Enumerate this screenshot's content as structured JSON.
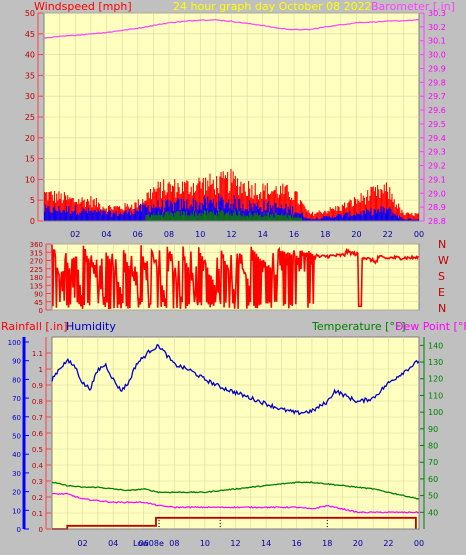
{
  "header": {
    "left_label": "Windspeed [mph]",
    "center_label": "24 hour graph day   October 08 2022",
    "right_label": "Barometer [.in]"
  },
  "x_ticks": [
    "02",
    "04",
    "06",
    "08",
    "10",
    "12",
    "14",
    "16",
    "18",
    "20",
    "22",
    "00"
  ],
  "compass_letters": [
    "N",
    "W",
    "S",
    "E",
    "N"
  ],
  "bottom_legend": {
    "rainfall": "Rainfall [.in]",
    "humidity": "Humidity",
    "temperature": "Temperature [°F]",
    "dew_point": "Dew Point [°F]"
  },
  "low_marker_label": "Low08e",
  "colors": {
    "plot_bg": "#ffffc0",
    "windspeed": "#ff0000",
    "avg_wind": "#0000ff",
    "wind_extra": "#008000",
    "barometer": "#ff40ff",
    "humidity": "#0000c8",
    "temperature": "#008000",
    "dew_point": "#ff00ff",
    "rainfall": "#c00000",
    "header_text": "#ffff00"
  },
  "chart_data": [
    {
      "type": "line",
      "title": "24 hour graph day   October 08 2022",
      "x_unit": "hour of day",
      "x_ticks": [
        "02",
        "04",
        "06",
        "08",
        "10",
        "12",
        "14",
        "16",
        "18",
        "20",
        "22",
        "00"
      ],
      "y_left": {
        "label": "Windspeed [mph]",
        "ylim": [
          0,
          50
        ],
        "ticks": [
          0,
          5,
          10,
          15,
          20,
          25,
          30,
          35,
          40,
          45,
          50
        ]
      },
      "y_right": {
        "label": "Barometer [.in]",
        "ylim": [
          28.8,
          30.3
        ],
        "ticks": [
          28.8,
          28.9,
          29.0,
          29.1,
          29.2,
          29.3,
          29.4,
          29.5,
          29.6,
          29.7,
          29.8,
          29.9,
          30.0,
          30.1,
          30.2,
          30.3
        ]
      },
      "grid": true,
      "series": [
        {
          "name": "Barometer [.in]",
          "axis": "right",
          "x": [
            0,
            2,
            4,
            6,
            8,
            10,
            11,
            12,
            14,
            15,
            16,
            17,
            18,
            20,
            22,
            24
          ],
          "y": [
            30.12,
            30.14,
            30.16,
            30.19,
            30.23,
            30.25,
            30.25,
            30.24,
            30.21,
            30.19,
            30.18,
            30.18,
            30.2,
            30.23,
            30.24,
            30.25
          ]
        },
        {
          "name": "Windspeed [mph]",
          "axis": "left",
          "x": [
            0,
            1,
            2,
            3,
            4,
            5,
            6,
            7,
            8,
            9,
            10,
            11,
            12,
            13,
            14,
            15,
            16,
            17,
            18,
            19,
            20,
            21,
            22,
            23,
            24
          ],
          "y": [
            8,
            7,
            6,
            6,
            4,
            4,
            5,
            9,
            10,
            10,
            11,
            11,
            12,
            10,
            9,
            9,
            8,
            2,
            3,
            4,
            6,
            8,
            9,
            2,
            2
          ]
        },
        {
          "name": "Average windspeed",
          "axis": "left",
          "x": [
            0,
            1,
            2,
            3,
            4,
            5,
            6,
            7,
            8,
            9,
            10,
            11,
            12,
            13,
            14,
            15,
            16,
            17,
            18,
            19,
            20,
            21,
            22,
            23,
            24
          ],
          "y": [
            3,
            3,
            3,
            2.5,
            2,
            2,
            3,
            4,
            4,
            4.5,
            4.5,
            5,
            5,
            4,
            4,
            3.5,
            3,
            0.5,
            1,
            1.5,
            2,
            2.5,
            3,
            0.5,
            0.5
          ]
        }
      ]
    },
    {
      "type": "line",
      "x_unit": "hour of day",
      "y_left": {
        "ylim": [
          0,
          360
        ],
        "ticks": [
          0,
          45,
          90,
          135,
          180,
          225,
          270,
          315,
          360
        ]
      },
      "compass": [
        "N",
        "W",
        "S",
        "E",
        "N"
      ],
      "series": [
        {
          "name": "Wind direction",
          "axis": "left",
          "x": [
            0,
            0.8,
            0.8,
            1.5,
            1.5,
            2.0,
            2.0,
            3.5,
            3.5,
            4.6,
            4.6,
            5.8,
            5.8,
            6.4,
            6.4,
            7.5,
            7.5,
            8.5,
            8.5,
            9.5,
            9.5,
            11.0,
            11.0,
            12.0,
            12.0,
            13.0,
            13.0,
            14.8,
            14.8,
            16.2,
            16.2,
            17.2,
            17.2,
            17.4,
            17.4,
            19.2,
            19.2,
            20.1,
            20.1,
            20.3,
            20.3,
            21.3,
            21.3,
            22.0,
            22.0,
            24
          ],
          "y": [
            340,
            20,
            330,
            40,
            320,
            10,
            330,
            20,
            300,
            60,
            320,
            20,
            330,
            10,
            330,
            20,
            320,
            30,
            330,
            10,
            330,
            30,
            320,
            60,
            300,
            90,
            310,
            150,
            300,
            260,
            300,
            270,
            310,
            290,
            290,
            300,
            320,
            300,
            30,
            310,
            290,
            260,
            290,
            280,
            285,
            285
          ]
        }
      ]
    },
    {
      "type": "line",
      "x_unit": "hour of day",
      "x_ticks": [
        "02",
        "04",
        "06",
        "08",
        "10",
        "12",
        "14",
        "16",
        "18",
        "20",
        "22",
        "00"
      ],
      "y_left_outer": {
        "label": "Rainfall [.in]",
        "ylim": [
          0,
          1.2
        ],
        "ticks": [
          0,
          0.1,
          0.2,
          0.3,
          0.4,
          0.5,
          0.6,
          0.7,
          0.8,
          0.9,
          1.0,
          1.1
        ]
      },
      "y_left_inner": {
        "label": "Humidity",
        "ylim": [
          0,
          100
        ],
        "ticks": [
          0,
          10,
          20,
          30,
          40,
          50,
          60,
          70,
          80,
          90,
          100
        ]
      },
      "y_right": {
        "label": "Temperature [°F]",
        "ylim": [
          30,
          145
        ],
        "ticks": [
          40,
          50,
          60,
          70,
          80,
          90,
          100,
          110,
          120,
          130,
          140
        ]
      },
      "annotations": [
        {
          "text": "Low08e",
          "x": 5.3
        }
      ],
      "grid": true,
      "series": [
        {
          "name": "Humidity",
          "axis": "left_inner",
          "x": [
            0,
            0.5,
            1.0,
            1.5,
            2.0,
            2.5,
            3.0,
            3.5,
            4.0,
            4.5,
            5.0,
            5.5,
            6.0,
            6.5,
            7.0,
            7.5,
            8.0,
            9.0,
            10.0,
            11.0,
            12.0,
            13.0,
            14.0,
            15.0,
            16.0,
            17.0,
            18.0,
            18.5,
            19.0,
            20.0,
            21.0,
            22.0,
            23.0,
            24.0
          ],
          "y": [
            80,
            86,
            90,
            87,
            78,
            75,
            85,
            88,
            80,
            74,
            78,
            88,
            92,
            96,
            98,
            93,
            88,
            85,
            80,
            76,
            73,
            70,
            67,
            64,
            62,
            63,
            68,
            74,
            72,
            68,
            70,
            78,
            84,
            90
          ]
        },
        {
          "name": "Temperature [°F]",
          "axis": "right",
          "x": [
            0,
            1,
            2,
            3,
            4,
            5,
            6,
            7,
            8,
            9,
            10,
            11,
            12,
            13,
            14,
            15,
            16,
            17,
            18,
            19,
            20,
            21,
            22,
            23,
            24
          ],
          "y": [
            58,
            56,
            55,
            55,
            54,
            53,
            54,
            52,
            52,
            52,
            52,
            53,
            54,
            55,
            56,
            57,
            58,
            58,
            57,
            56,
            55,
            54,
            52,
            50,
            48
          ]
        },
        {
          "name": "Dew Point [°F]",
          "axis": "right",
          "x": [
            0,
            1,
            2,
            3,
            4,
            5,
            6,
            7,
            8,
            9,
            10,
            11,
            12,
            13,
            14,
            15,
            16,
            17,
            18,
            19,
            20,
            21,
            22,
            23,
            24
          ],
          "y": [
            51,
            51,
            48,
            47,
            46,
            46,
            46,
            44,
            43,
            43,
            43,
            43,
            43,
            43,
            43,
            43,
            43,
            42,
            44,
            42,
            40,
            40,
            40,
            40,
            40
          ]
        },
        {
          "name": "Rainfall [.in]",
          "axis": "left_outer",
          "x": [
            0,
            1.0,
            1.0,
            6.8,
            6.8,
            23.8,
            23.8
          ],
          "y": [
            0,
            0,
            0.02,
            0.02,
            0.07,
            0.07,
            0
          ]
        }
      ]
    }
  ]
}
